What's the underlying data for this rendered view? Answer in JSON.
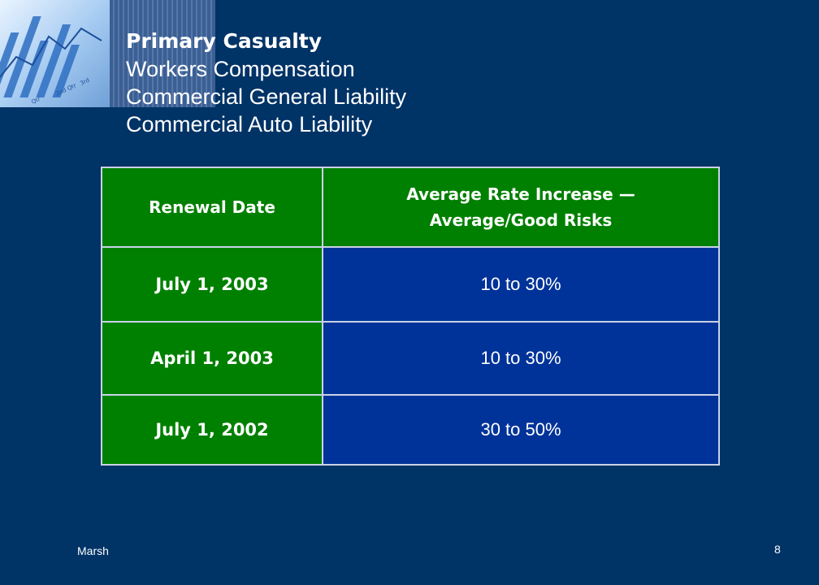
{
  "slide": {
    "title": "Primary Casualty",
    "subtitles": [
      "Workers Compensation",
      "Commercial General Liability",
      "Commercial Auto Liability"
    ]
  },
  "table": {
    "headers": [
      "Renewal Date",
      "Average Rate Increase —",
      "Average/Good Risks"
    ],
    "rows": [
      {
        "date": "July 1, 2003",
        "rate": "10 to 30%"
      },
      {
        "date": "April 1, 2003",
        "rate": "10 to 30%"
      },
      {
        "date": "July 1, 2002",
        "rate": "30 to 50%"
      }
    ]
  },
  "footer": {
    "company": "Marsh",
    "page_number": "8"
  },
  "colors": {
    "background": "#003366",
    "header_green": "#008000",
    "cell_blue": "#003399"
  },
  "icons": [
    "bar-chart-photo-icon"
  ]
}
